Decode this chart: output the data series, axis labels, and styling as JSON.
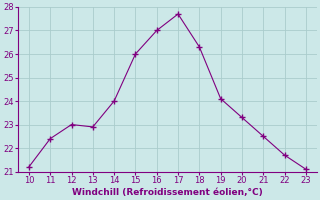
{
  "x": [
    10,
    11,
    12,
    13,
    14,
    15,
    16,
    17,
    18,
    19,
    20,
    21,
    22,
    23
  ],
  "y": [
    21.2,
    22.4,
    23.0,
    22.9,
    24.0,
    26.0,
    27.0,
    27.7,
    26.3,
    24.1,
    23.3,
    22.5,
    21.7,
    21.1
  ],
  "line_color": "#800080",
  "marker_color": "#800080",
  "bg_color": "#cce8e8",
  "grid_color": "#aacccc",
  "xlabel": "Windchill (Refroidissement éolien,°C)",
  "xlabel_color": "#800080",
  "xlim": [
    9.5,
    23.5
  ],
  "ylim": [
    21,
    28
  ],
  "yticks": [
    21,
    22,
    23,
    24,
    25,
    26,
    27,
    28
  ],
  "xticks": [
    10,
    11,
    12,
    13,
    14,
    15,
    16,
    17,
    18,
    19,
    20,
    21,
    22,
    23
  ],
  "tick_color": "#800080",
  "axis_line_color": "#800080"
}
